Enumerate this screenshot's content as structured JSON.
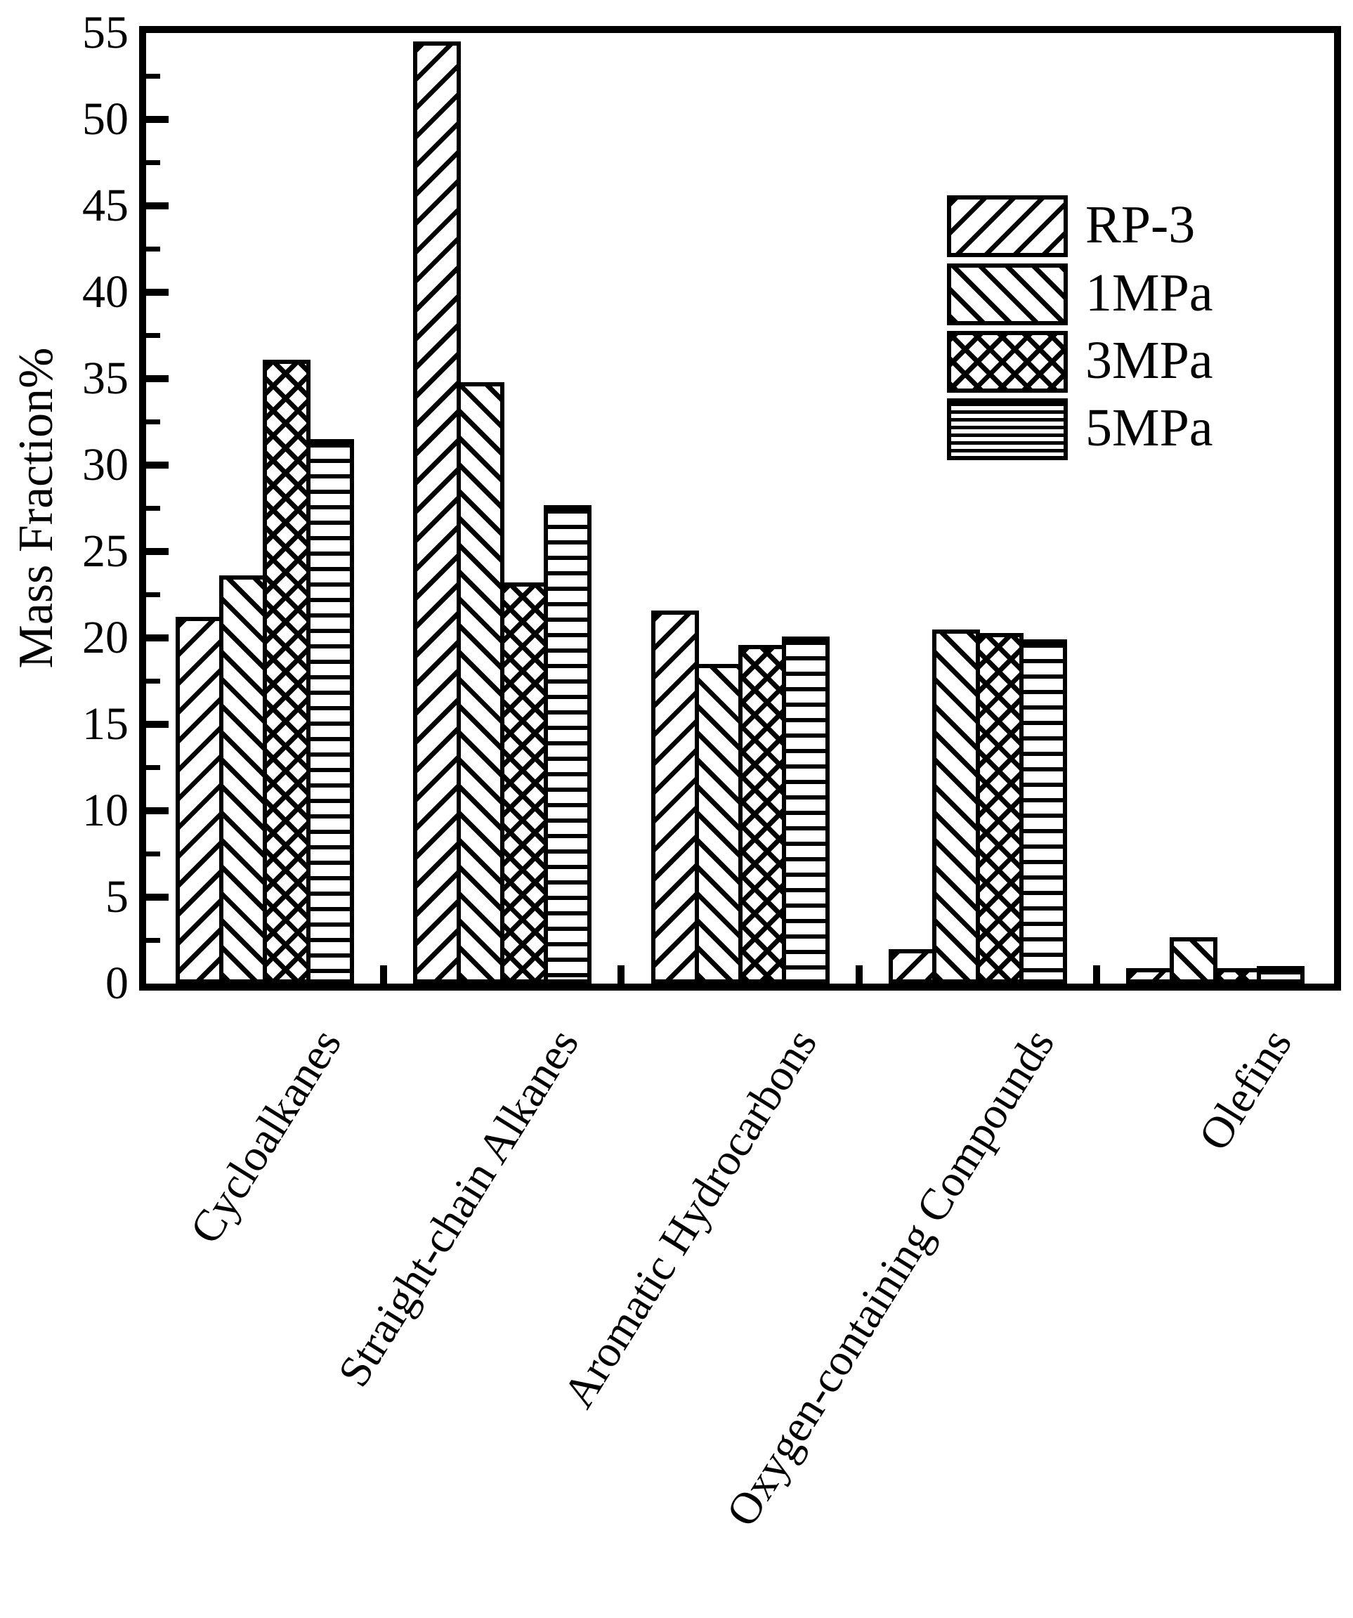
{
  "chart_data": {
    "type": "bar",
    "title": "",
    "xlabel": "",
    "ylabel": "Mass Fraction%",
    "ylim": [
      0,
      55
    ],
    "yticks_major": [
      0,
      5,
      10,
      15,
      20,
      25,
      30,
      35,
      40,
      45,
      50,
      55
    ],
    "ytick_minor_step": 2.5,
    "grid": false,
    "legend_position": "upper right",
    "categories": [
      "Cycloalkanes",
      "Straight-chain Alkanes",
      "Aromatic Hydrocarbons",
      "Oxygen-containing Compounds",
      "Olefins"
    ],
    "series": [
      {
        "name": "RP-3",
        "hatch": "diagonal-forward",
        "values": [
          21.2,
          54.5,
          21.6,
          2.0,
          0.9
        ]
      },
      {
        "name": "1MPa",
        "hatch": "diagonal-backward",
        "values": [
          23.6,
          34.8,
          18.5,
          20.5,
          2.7
        ]
      },
      {
        "name": "3MPa",
        "hatch": "crosshatch",
        "values": [
          36.1,
          23.2,
          19.6,
          20.3,
          0.9
        ]
      },
      {
        "name": "5MPa",
        "hatch": "horizontal",
        "values": [
          31.5,
          27.7,
          20.1,
          19.9,
          1.0
        ]
      }
    ],
    "colors": {
      "foreground": "#000000",
      "background": "#ffffff"
    }
  }
}
